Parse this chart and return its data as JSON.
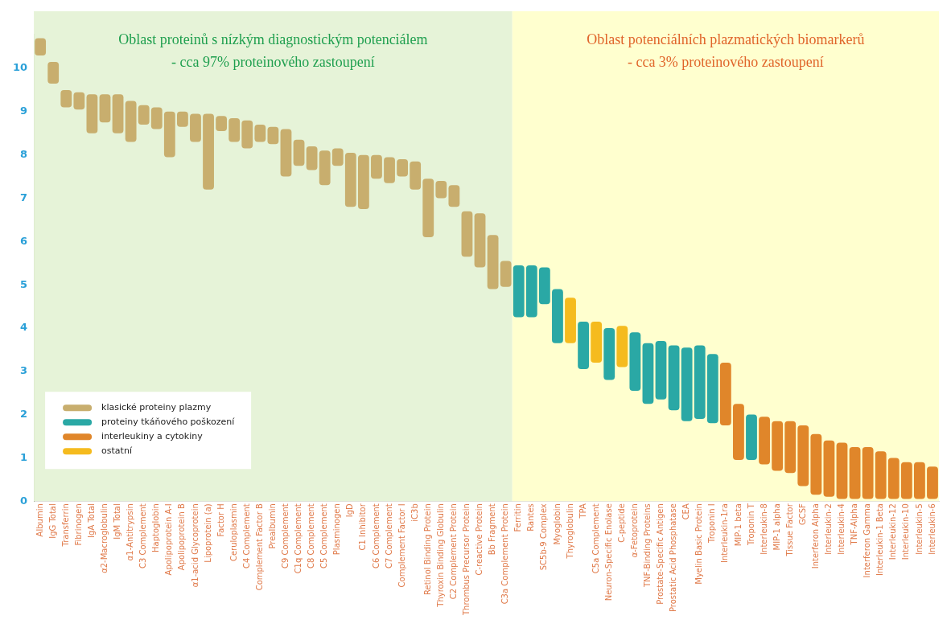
{
  "chart_data": {
    "type": "bar",
    "categories": [
      "Albumin",
      "IgG Total",
      "Transferrin",
      "Fibrinogen",
      "IgA Total",
      "α2-Macroglobulin",
      "IgM Total",
      "α1-Antitrypsin",
      "C3 Complement",
      "Haptoglobin",
      "Apolipoprotein A-I",
      "Apolipoprotein B",
      "α1-acid Glycoprotein",
      "Lipoprotein (a)",
      "Factor H",
      "Ceruloplasmin",
      "C4 Complement",
      "Complement Factor B",
      "Prealbumin",
      "C9 Complement",
      "C1q Complement",
      "C8 Complement",
      "C5 Complement",
      "Plasminogen",
      "IgD",
      "C1 Inhibitor",
      "C6 Complement",
      "C7 Complement",
      "Complement Factor I",
      "iC3b",
      "Retinol Binding Protein",
      "Thyroxin Binding Globulin",
      "C2 Complement Protein",
      "Thrombus Precursor Protein",
      "C-reactive Protein",
      "Bb Fragment",
      "C3a Complement Protein",
      "Ferritin",
      "Rantes",
      "SC5b-9 Complex",
      "Myoglobin",
      "Thyroglobulin",
      "TPA",
      "C5a Complement",
      "Neuron-Specific Enolase",
      "C-peptide",
      "α-Fetoprotein",
      "TNF-Binding Proteins",
      "Prostate-Specific Antigen",
      "Prostatic Acid Phosphatase",
      "CEA",
      "Myelin Basic Protein",
      "Troponin I",
      "Interleukin-1ra",
      "MIP-1 beta",
      "Troponin T",
      "Interleukin-8",
      "MIP-1 alpha",
      "Tissue Factor",
      "GCSF",
      "Interferon Alpha",
      "Interleukin-2",
      "Interleukin-4",
      "TNF-Alpha",
      "Interferon Gamma",
      "Interleukin-1 Beta",
      "Interleukin-12",
      "Interleukin-10",
      "Interleukin-5",
      "Interleukin-6"
    ],
    "series": [
      {
        "name": "klasické proteiny plazmy",
        "color": "#c8ae6e",
        "values": [
          0.4,
          0.5,
          0.4,
          0.4,
          0.9,
          0.65,
          0.9,
          0.95,
          0.45,
          0.5,
          1.05,
          0.35,
          0.65,
          1.75,
          0.35,
          0.55,
          0.65,
          0.4,
          0.4,
          1.1,
          0.6,
          0.55,
          0.8,
          0.4,
          1.25,
          1.25,
          0.55,
          0.6,
          0.4,
          0.65,
          1.35,
          0.4,
          0.5,
          1.05,
          1.25,
          1.25,
          0.6,
          null,
          null,
          null,
          null,
          null,
          null,
          null,
          null,
          null,
          null,
          null,
          null,
          null,
          null,
          null,
          null,
          null,
          null,
          null,
          null,
          null,
          null,
          null,
          null,
          null,
          null,
          null,
          null,
          null,
          null,
          null,
          null,
          null
        ],
        "base": [
          10.3,
          9.65,
          9.1,
          9.05,
          8.5,
          8.75,
          8.5,
          8.3,
          8.7,
          8.6,
          7.95,
          8.65,
          8.3,
          7.2,
          8.55,
          8.3,
          8.15,
          8.3,
          8.25,
          7.5,
          7.75,
          7.65,
          7.3,
          7.75,
          6.8,
          6.75,
          7.45,
          7.35,
          7.5,
          7.2,
          6.1,
          7.0,
          6.8,
          5.65,
          5.4,
          4.9,
          4.95,
          null,
          null,
          null,
          null,
          null,
          null,
          null,
          null,
          null,
          null,
          null,
          null,
          null,
          null,
          null,
          null,
          null,
          null,
          null,
          null,
          null,
          null,
          null,
          null,
          null,
          null,
          null,
          null,
          null,
          null,
          null,
          null,
          null
        ]
      },
      {
        "name": "proteiny tkáňového poškození",
        "color": "#2aa8a5",
        "values": [
          null,
          null,
          null,
          null,
          null,
          null,
          null,
          null,
          null,
          null,
          null,
          null,
          null,
          null,
          null,
          null,
          null,
          null,
          null,
          null,
          null,
          null,
          null,
          null,
          null,
          null,
          null,
          null,
          null,
          null,
          null,
          null,
          null,
          null,
          null,
          null,
          null,
          1.2,
          1.2,
          0.85,
          1.25,
          null,
          1.1,
          null,
          1.2,
          null,
          1.35,
          1.4,
          1.35,
          1.5,
          1.7,
          1.7,
          1.6,
          null,
          null,
          1.05,
          null,
          null,
          null,
          null,
          null,
          null,
          null,
          null,
          null,
          null,
          null,
          null,
          null,
          null
        ],
        "base": [
          null,
          null,
          null,
          null,
          null,
          null,
          null,
          null,
          null,
          null,
          null,
          null,
          null,
          null,
          null,
          null,
          null,
          null,
          null,
          null,
          null,
          null,
          null,
          null,
          null,
          null,
          null,
          null,
          null,
          null,
          null,
          null,
          null,
          null,
          null,
          null,
          null,
          4.25,
          4.25,
          4.55,
          3.65,
          null,
          3.05,
          null,
          2.8,
          null,
          2.55,
          2.25,
          2.35,
          2.1,
          1.85,
          1.9,
          1.8,
          null,
          null,
          0.95,
          null,
          null,
          null,
          null,
          null,
          null,
          null,
          null,
          null,
          null,
          null,
          null,
          null,
          null
        ]
      },
      {
        "name": "interleukiny a cytokiny",
        "color": "#e0862a",
        "values": [
          null,
          null,
          null,
          null,
          null,
          null,
          null,
          null,
          null,
          null,
          null,
          null,
          null,
          null,
          null,
          null,
          null,
          null,
          null,
          null,
          null,
          null,
          null,
          null,
          null,
          null,
          null,
          null,
          null,
          null,
          null,
          null,
          null,
          null,
          null,
          null,
          null,
          null,
          null,
          null,
          null,
          null,
          null,
          null,
          null,
          null,
          null,
          null,
          null,
          null,
          null,
          null,
          null,
          1.45,
          1.3,
          null,
          1.1,
          1.15,
          1.2,
          1.4,
          1.4,
          1.3,
          1.3,
          1.2,
          1.2,
          1.1,
          0.95,
          0.85,
          0.85,
          0.75
        ],
        "base": [
          null,
          null,
          null,
          null,
          null,
          null,
          null,
          null,
          null,
          null,
          null,
          null,
          null,
          null,
          null,
          null,
          null,
          null,
          null,
          null,
          null,
          null,
          null,
          null,
          null,
          null,
          null,
          null,
          null,
          null,
          null,
          null,
          null,
          null,
          null,
          null,
          null,
          null,
          null,
          null,
          null,
          null,
          null,
          null,
          null,
          null,
          null,
          null,
          null,
          null,
          null,
          null,
          null,
          1.75,
          0.95,
          null,
          0.85,
          0.7,
          0.65,
          0.35,
          0.15,
          0.1,
          0.05,
          0.05,
          0.05,
          0.05,
          0.05,
          0.05,
          0.05,
          0.05
        ]
      },
      {
        "name": "ostatní",
        "color": "#f5bb1e",
        "values": [
          null,
          null,
          null,
          null,
          null,
          null,
          null,
          null,
          null,
          null,
          null,
          null,
          null,
          null,
          null,
          null,
          null,
          null,
          null,
          null,
          null,
          null,
          null,
          null,
          null,
          null,
          null,
          null,
          null,
          null,
          null,
          null,
          null,
          null,
          null,
          null,
          null,
          null,
          null,
          null,
          null,
          1.05,
          null,
          0.95,
          null,
          0.95,
          null,
          null,
          null,
          null,
          null,
          null,
          null,
          null,
          null,
          null,
          null,
          null,
          null,
          null,
          null,
          null,
          null,
          null,
          null,
          null,
          null,
          null,
          null,
          null
        ],
        "base": [
          null,
          null,
          null,
          null,
          null,
          null,
          null,
          null,
          null,
          null,
          null,
          null,
          null,
          null,
          null,
          null,
          null,
          null,
          null,
          null,
          null,
          null,
          null,
          null,
          null,
          null,
          null,
          null,
          null,
          null,
          null,
          null,
          null,
          null,
          null,
          null,
          null,
          null,
          null,
          null,
          null,
          3.65,
          null,
          3.2,
          null,
          3.1,
          null,
          null,
          null,
          null,
          null,
          null,
          null,
          null,
          null,
          null,
          null,
          null,
          null,
          null,
          null,
          null,
          null,
          null,
          null,
          null,
          null,
          null,
          null,
          null
        ]
      }
    ],
    "ylim": [
      0,
      10.8
    ],
    "yticks": [
      0,
      1,
      2,
      3,
      4,
      5,
      6,
      7,
      8,
      9,
      10
    ],
    "grid": false,
    "legend": "bottom left",
    "bands": [
      {
        "axis": "x",
        "from": "Albumin",
        "to": "C3a Complement Protein",
        "label": "Oblast proteinů s nízkým diagnostickým potenciálem\n- cca 97% proteinového zastoupení",
        "color": "#e6f3d8"
      },
      {
        "axis": "x",
        "from": "Ferritin",
        "to": "Interleukin-6",
        "label": "Oblast potenciálních plazmatických biomarkerů\n- cca 3% proteinového zastoupení",
        "color": "#ffffcf"
      }
    ]
  }
}
